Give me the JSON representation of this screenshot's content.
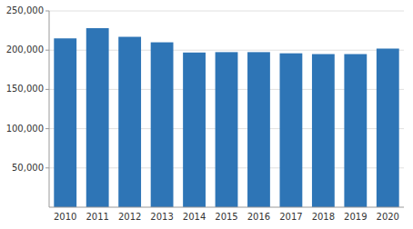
{
  "chart_data": {
    "type": "bar",
    "categories": [
      "2010",
      "2011",
      "2012",
      "2013",
      "2014",
      "2015",
      "2016",
      "2017",
      "2018",
      "2019",
      "2020"
    ],
    "values": [
      215000,
      228000,
      217000,
      210000,
      197000,
      197500,
      197500,
      196000,
      195000,
      195000,
      202000
    ],
    "color": "#2E75B6",
    "ylim": [
      0,
      250000
    ],
    "yticks": [
      {
        "value": 50000,
        "label": "50,000"
      },
      {
        "value": 100000,
        "label": "100,000"
      },
      {
        "value": 150000,
        "label": "150,000"
      },
      {
        "value": 200000,
        "label": "200,000"
      },
      {
        "value": 250000,
        "label": "250,000"
      }
    ],
    "grid": true
  }
}
